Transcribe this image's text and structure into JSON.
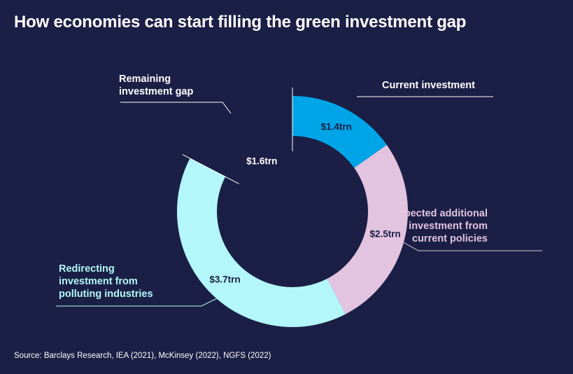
{
  "title": "How economies can start filling the green investment gap",
  "source": "Source: Barclays Research, IEA (2021), McKinsey (2022), NGFS (2022)",
  "chart_data": {
    "type": "pie",
    "variant": "donut",
    "unit": "$trn",
    "segments": [
      {
        "label": "Current investment",
        "value": 1.4,
        "display": "$1.4trn",
        "color": "#00a5e8",
        "value_color": "#1b1f45",
        "label_color": "#ffffff"
      },
      {
        "label": "Expected additional\ninvestment from\ncurrent policies",
        "value": 2.5,
        "display": "$2.5trn",
        "color": "#e2c3e0",
        "value_color": "#1b1f45",
        "label_color": "#e2c3e0"
      },
      {
        "label": "Redirecting\ninvestment from\npolluting industries",
        "value": 3.7,
        "display": "$3.7trn",
        "color": "#b3f7fb",
        "value_color": "#1b1f45",
        "label_color": "#b3f7fb"
      },
      {
        "label": "Remaining\ninvestment gap",
        "value": 1.6,
        "display": "$1.6trn",
        "color": "none",
        "value_color": "#ffffff",
        "label_color": "#ffffff"
      }
    ]
  }
}
